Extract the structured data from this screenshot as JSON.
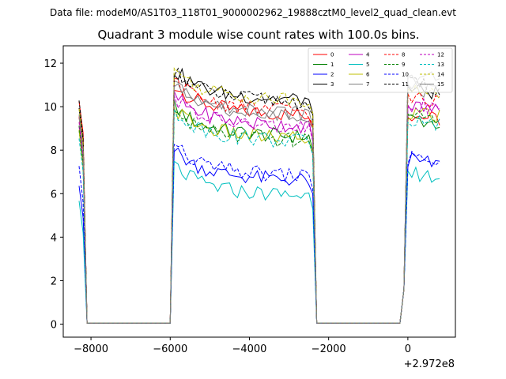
{
  "chart_data": {
    "type": "line",
    "supertitle": "Data file: modeM0/AS1T03_118T01_9000002962_19888cztM0_level2_quad_clean.evt",
    "title": "Quadrant 3 module wise count rates with 100.0s bins.",
    "xlabel": "",
    "ylabel": "",
    "x_offset_label": "+2.972e8",
    "xlim": [
      -8700,
      1200
    ],
    "ylim": [
      -0.6,
      12.8
    ],
    "xticks": [
      -8000,
      -6000,
      -4000,
      -2000,
      0
    ],
    "xtick_labels": [
      "−8000",
      "−6000",
      "−4000",
      "−2000",
      "0"
    ],
    "yticks": [
      0,
      2,
      4,
      6,
      8,
      10,
      12
    ],
    "ytick_labels": [
      "0",
      "2",
      "4",
      "6",
      "8",
      "10",
      "12"
    ],
    "legend_position": "upper-right",
    "grid": false,
    "segments": [
      {
        "start": -8300,
        "end": -8200
      },
      {
        "start": -5900,
        "end": -2400
      },
      {
        "start": -100,
        "end": 800
      }
    ],
    "series": [
      {
        "name": "0",
        "color": "#ff0000",
        "style": "solid",
        "start_level": 10.4,
        "level": 9.8,
        "tail_level": 9.4
      },
      {
        "name": "1",
        "color": "#008000",
        "style": "solid",
        "start_level": 9.0,
        "level": 8.8,
        "tail_level": 9.2
      },
      {
        "name": "2",
        "color": "#0000ff",
        "style": "solid",
        "start_level": 6.5,
        "level": 6.8,
        "tail_level": 7.3
      },
      {
        "name": "3",
        "color": "#000000",
        "style": "solid",
        "start_level": 10.0,
        "level": 10.5,
        "tail_level": 10.6
      },
      {
        "name": "4",
        "color": "#bf00bf",
        "style": "solid",
        "start_level": 9.2,
        "level": 9.3,
        "tail_level": 9.8
      },
      {
        "name": "5",
        "color": "#00bfbf",
        "style": "solid",
        "start_level": 5.8,
        "level": 6.1,
        "tail_level": 6.7
      },
      {
        "name": "6",
        "color": "#bfbf00",
        "style": "solid",
        "start_level": 8.8,
        "level": 8.7,
        "tail_level": 9.5
      },
      {
        "name": "7",
        "color": "#808080",
        "style": "solid",
        "start_level": 9.6,
        "level": 9.9,
        "tail_level": 10.6
      },
      {
        "name": "8",
        "color": "#ff0000",
        "style": "dashed",
        "start_level": 9.6,
        "level": 10.0,
        "tail_level": 10.2
      },
      {
        "name": "9",
        "color": "#008000",
        "style": "dashed",
        "start_level": 9.0,
        "level": 8.6,
        "tail_level": 9.4
      },
      {
        "name": "10",
        "color": "#0000ff",
        "style": "dashed",
        "start_level": 7.2,
        "level": 7.0,
        "tail_level": 7.4
      },
      {
        "name": "11",
        "color": "#000000",
        "style": "dashed",
        "start_level": 10.2,
        "level": 10.4,
        "tail_level": 10.8
      },
      {
        "name": "12",
        "color": "#bf00bf",
        "style": "dashed",
        "start_level": 9.3,
        "level": 9.2,
        "tail_level": 9.9
      },
      {
        "name": "13",
        "color": "#00bfbf",
        "style": "dashed",
        "start_level": 8.6,
        "level": 8.6,
        "tail_level": 9.2
      },
      {
        "name": "14",
        "color": "#bfbf00",
        "style": "dashed",
        "start_level": 9.9,
        "level": 10.5,
        "tail_level": 10.5
      },
      {
        "name": "15",
        "color": "#808080",
        "style": "solid",
        "start_level": 9.6,
        "level": 9.8,
        "tail_level": 11.2
      }
    ]
  }
}
